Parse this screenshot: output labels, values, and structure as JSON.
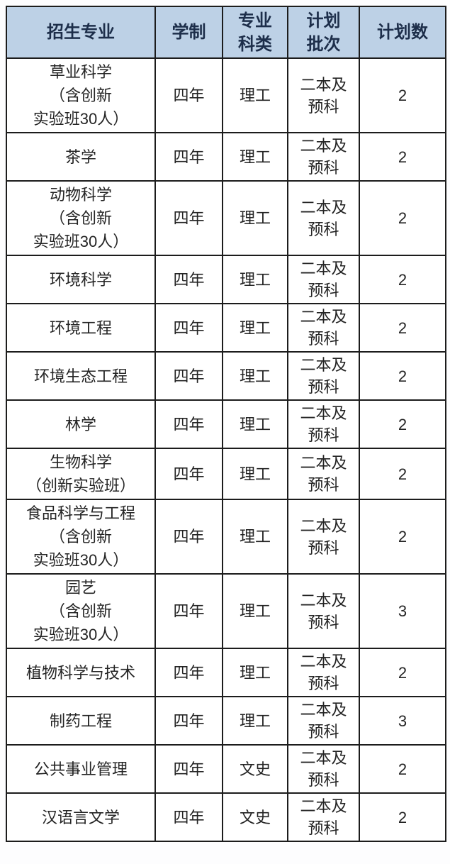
{
  "colors": {
    "header_bg": "#bdd1e6",
    "header_text": "#1d2e4a",
    "border": "#1c1c1c",
    "body_text": "#242424",
    "page_bg": "#fdfdfe"
  },
  "table": {
    "headers": [
      {
        "lines": [
          "招生专业"
        ]
      },
      {
        "lines": [
          "学制"
        ]
      },
      {
        "lines": [
          "专业",
          "科类"
        ]
      },
      {
        "lines": [
          "计划",
          "批次"
        ]
      },
      {
        "lines": [
          "计划数"
        ]
      }
    ],
    "rows": [
      {
        "major_lines": [
          "草业科学",
          "（含创新",
          "实验班30人）"
        ],
        "duration": "四年",
        "category": "理工",
        "batch_lines": [
          "二本及",
          "预科"
        ],
        "count": "2"
      },
      {
        "major_lines": [
          "茶学"
        ],
        "duration": "四年",
        "category": "理工",
        "batch_lines": [
          "二本及",
          "预科"
        ],
        "count": "2"
      },
      {
        "major_lines": [
          "动物科学",
          "（含创新",
          "实验班30人）"
        ],
        "duration": "四年",
        "category": "理工",
        "batch_lines": [
          "二本及",
          "预科"
        ],
        "count": "2"
      },
      {
        "major_lines": [
          "环境科学"
        ],
        "duration": "四年",
        "category": "理工",
        "batch_lines": [
          "二本及",
          "预科"
        ],
        "count": "2"
      },
      {
        "major_lines": [
          "环境工程"
        ],
        "duration": "四年",
        "category": "理工",
        "batch_lines": [
          "二本及",
          "预科"
        ],
        "count": "2"
      },
      {
        "major_lines": [
          "环境生态工程"
        ],
        "duration": "四年",
        "category": "理工",
        "batch_lines": [
          "二本及",
          "预科"
        ],
        "count": "2"
      },
      {
        "major_lines": [
          "林学"
        ],
        "duration": "四年",
        "category": "理工",
        "batch_lines": [
          "二本及",
          "预科"
        ],
        "count": "2"
      },
      {
        "major_lines": [
          "生物科学",
          "（创新实验班）"
        ],
        "duration": "四年",
        "category": "理工",
        "batch_lines": [
          "二本及",
          "预科"
        ],
        "count": "2"
      },
      {
        "major_lines": [
          "食品科学与工程",
          "（含创新",
          "实验班30人）"
        ],
        "duration": "四年",
        "category": "理工",
        "batch_lines": [
          "二本及",
          "预科"
        ],
        "count": "2"
      },
      {
        "major_lines": [
          "园艺",
          "（含创新",
          "实验班30人）"
        ],
        "duration": "四年",
        "category": "理工",
        "batch_lines": [
          "二本及",
          "预科"
        ],
        "count": "3"
      },
      {
        "major_lines": [
          "植物科学与技术"
        ],
        "duration": "四年",
        "category": "理工",
        "batch_lines": [
          "二本及",
          "预科"
        ],
        "count": "2"
      },
      {
        "major_lines": [
          "制药工程"
        ],
        "duration": "四年",
        "category": "理工",
        "batch_lines": [
          "二本及",
          "预科"
        ],
        "count": "3"
      },
      {
        "major_lines": [
          "公共事业管理"
        ],
        "duration": "四年",
        "category": "文史",
        "batch_lines": [
          "二本及",
          "预科"
        ],
        "count": "2"
      },
      {
        "major_lines": [
          "汉语言文学"
        ],
        "duration": "四年",
        "category": "文史",
        "batch_lines": [
          "二本及",
          "预科"
        ],
        "count": "2"
      }
    ]
  }
}
